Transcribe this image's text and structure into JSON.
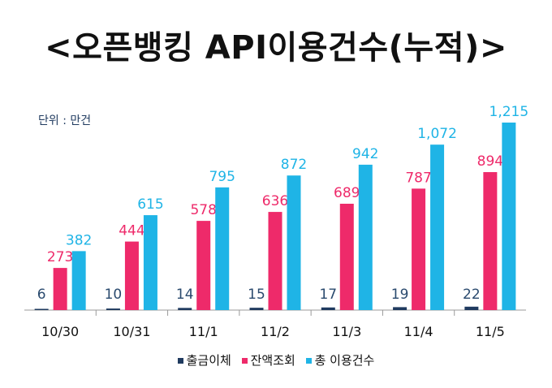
{
  "chart_data": {
    "type": "bar",
    "title": "<오픈뱅킹  API이용건수(누적)>",
    "unit_label": "단위 : 만건",
    "categories": [
      "10/30",
      "10/31",
      "11/1",
      "11/2",
      "11/3",
      "11/4",
      "11/5"
    ],
    "series": [
      {
        "name": "출금이체",
        "color": "#1f3a5f",
        "label_color": "#2a4a6e",
        "values": [
          6,
          10,
          14,
          15,
          17,
          19,
          22
        ]
      },
      {
        "name": "잔액조회",
        "color": "#ee2a6a",
        "label_color": "#ee2a6a",
        "values": [
          273,
          444,
          578,
          636,
          689,
          787,
          894
        ]
      },
      {
        "name": "총 이용건수",
        "color": "#1fb4e6",
        "label_color": "#1fb4e6",
        "values": [
          382,
          615,
          795,
          872,
          942,
          1072,
          1215
        ]
      }
    ],
    "ylim": [
      0,
      1215
    ],
    "legend_position": "bottom"
  }
}
